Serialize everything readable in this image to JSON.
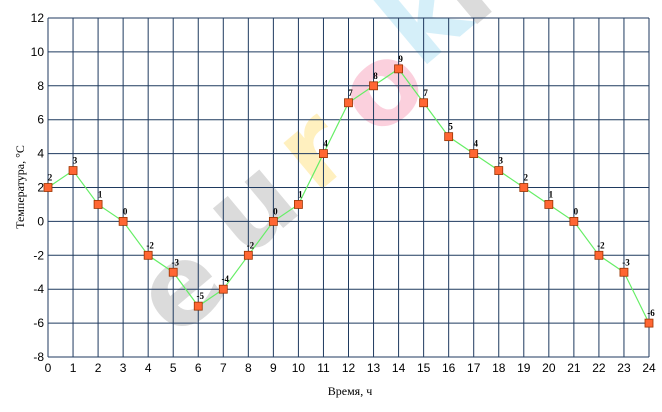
{
  "chart_data": {
    "type": "line",
    "xlabel": "Время, ч",
    "ylabel": "Температура, °С",
    "xlim": [
      0,
      24
    ],
    "ylim": [
      -8,
      12
    ],
    "x_ticks": [
      0,
      1,
      2,
      3,
      4,
      5,
      6,
      7,
      8,
      9,
      10,
      11,
      12,
      13,
      14,
      15,
      16,
      17,
      18,
      19,
      20,
      21,
      22,
      23,
      24
    ],
    "y_ticks": [
      -8,
      -6,
      -4,
      -2,
      0,
      2,
      4,
      6,
      8,
      10,
      12
    ],
    "grid": true,
    "legend": "none",
    "series": [
      {
        "x": [
          0,
          1,
          2,
          3,
          4,
          5,
          6,
          7,
          8,
          9,
          10,
          11,
          12,
          13,
          14,
          15,
          16,
          17,
          18,
          19,
          20,
          21,
          22,
          23,
          24
        ],
        "values": [
          2,
          3,
          1,
          0,
          -2,
          -3,
          -5,
          -4,
          -2,
          0,
          1,
          4,
          7,
          8,
          9,
          7,
          5,
          4,
          3,
          2,
          1,
          0,
          -2,
          -3,
          -6
        ],
        "labels": [
          "2",
          "3",
          "1",
          "0",
          "-2",
          "-3",
          "-5",
          "-4",
          "-2",
          "0",
          "1",
          "4",
          "7",
          "8",
          "9",
          "7",
          "5",
          "4",
          "3",
          "2",
          "1",
          "0",
          "-2",
          "-3",
          "-6"
        ],
        "line_color": "#66ee66",
        "marker_fill": "#ff6633",
        "marker_stroke": "#993300"
      }
    ],
    "grid_color": "#1f3a5f",
    "watermark": "euroki",
    "watermark_colors": [
      "#999999",
      "#999999",
      "#ffd54a",
      "#f47ba0",
      "#8ad4ef"
    ]
  }
}
